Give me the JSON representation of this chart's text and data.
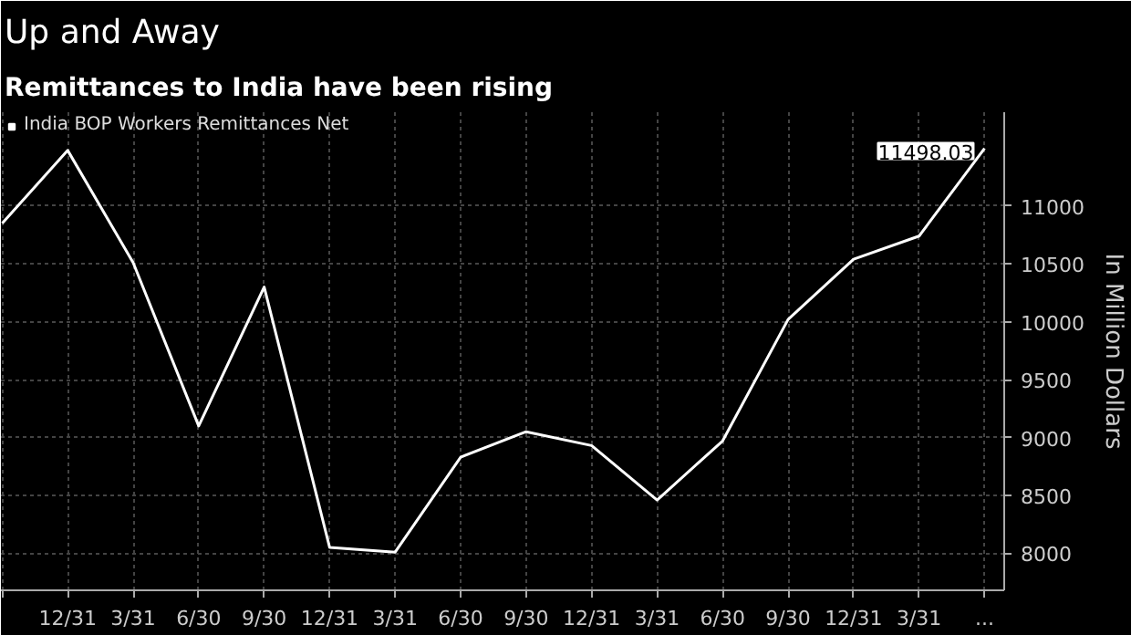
{
  "chart_data": {
    "type": "line",
    "title": "Up and Away",
    "subtitle": "Remittances to India have been rising",
    "categories": [
      null,
      "12/31",
      "3/31",
      "6/30",
      "9/30",
      "12/31",
      "3/31",
      "6/30",
      "9/30",
      "12/31",
      "3/31",
      "6/30",
      "9/30",
      "12/31",
      "3/31",
      "..."
    ],
    "series": [
      {
        "name": "India BOP Workers Remittances Net",
        "color": "#ffffff",
        "values": [
          10850,
          11480,
          10510,
          9100,
          10300,
          8050,
          8010,
          8830,
          9050,
          8930,
          8460,
          8970,
          10020,
          10540,
          10740,
          11498.03
        ],
        "value_labels": [
          null,
          null,
          null,
          null,
          null,
          null,
          null,
          null,
          null,
          null,
          null,
          null,
          null,
          null,
          null,
          "11498.03"
        ]
      }
    ],
    "ylabel": "In Million Dollars",
    "ylim": [
      7680,
      11810
    ],
    "yticks": [
      8000,
      8500,
      9000,
      9500,
      10000,
      10500,
      11000
    ],
    "grid": true,
    "legend": "top left",
    "marker": "none",
    "line_style": "solid"
  }
}
